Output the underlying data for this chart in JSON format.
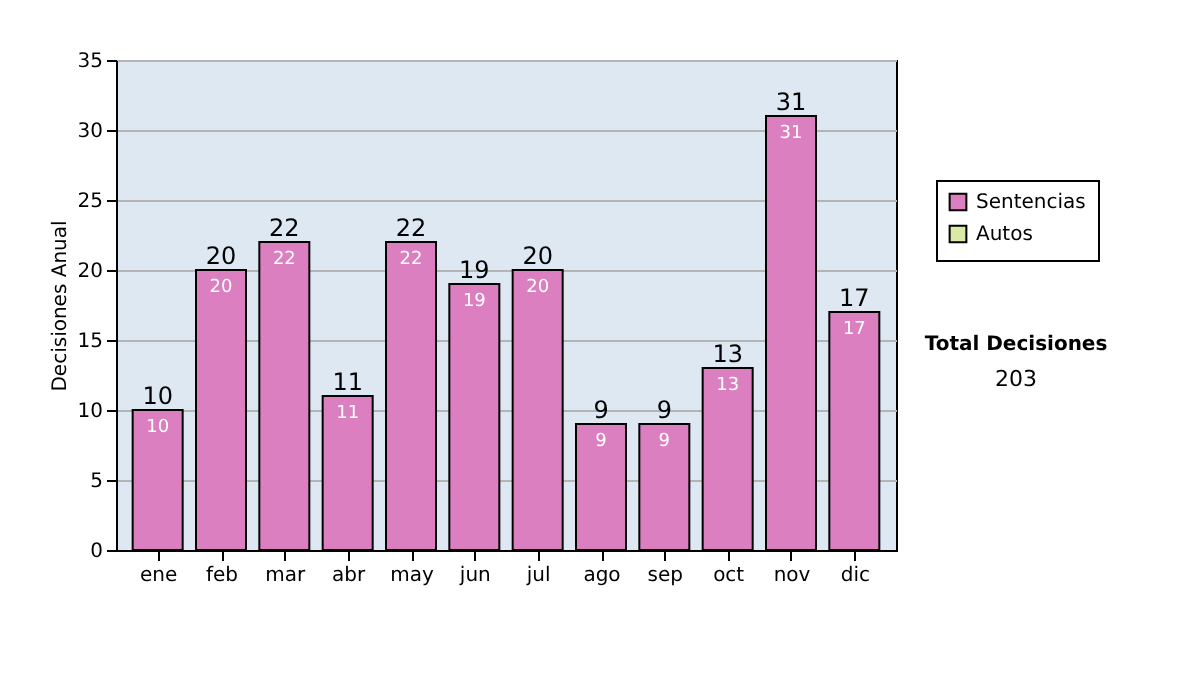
{
  "chart_data": {
    "type": "bar",
    "ylabel": "Decisiones Anual",
    "categories": [
      "ene",
      "feb",
      "mar",
      "abr",
      "may",
      "jun",
      "jul",
      "ago",
      "sep",
      "oct",
      "nov",
      "dic"
    ],
    "series": [
      {
        "name": "Sentencias",
        "color": "#dc7fc0",
        "values": [
          10,
          20,
          22,
          11,
          22,
          19,
          20,
          9,
          9,
          13,
          31,
          17
        ],
        "value_labels": [
          "10",
          "20",
          "22",
          "11",
          "22",
          "19",
          "20",
          "9",
          "9",
          "13",
          "31",
          "17"
        ]
      },
      {
        "name": "Autos",
        "color": "#d8eaa6",
        "values": [
          null,
          null,
          null,
          null,
          null,
          null,
          null,
          null,
          null,
          null,
          null,
          null
        ]
      }
    ],
    "ylim": [
      0,
      35
    ],
    "yticks": [
      0,
      5,
      10,
      15,
      20,
      25,
      30,
      35
    ],
    "grid": "y",
    "legend": "right",
    "annotations": [
      "Total Decisiones",
      "203",
      {
        "text": "10",
        "x": "ene",
        "y": 10
      },
      {
        "text": "20",
        "x": "feb",
        "y": 20
      },
      {
        "text": "22",
        "x": "mar",
        "y": 22
      },
      {
        "text": "11",
        "x": "abr",
        "y": 11
      },
      {
        "text": "22",
        "x": "may",
        "y": 22
      },
      {
        "text": "19",
        "x": "jun",
        "y": 19
      },
      {
        "text": "20",
        "x": "jul",
        "y": 20
      },
      {
        "text": "9",
        "x": "ago",
        "y": 9
      },
      {
        "text": "9",
        "x": "sep",
        "y": 9
      },
      {
        "text": "13",
        "x": "oct",
        "y": 13
      },
      {
        "text": "31",
        "x": "nov",
        "y": 31
      },
      {
        "text": "17",
        "x": "dic",
        "y": 17
      }
    ]
  }
}
